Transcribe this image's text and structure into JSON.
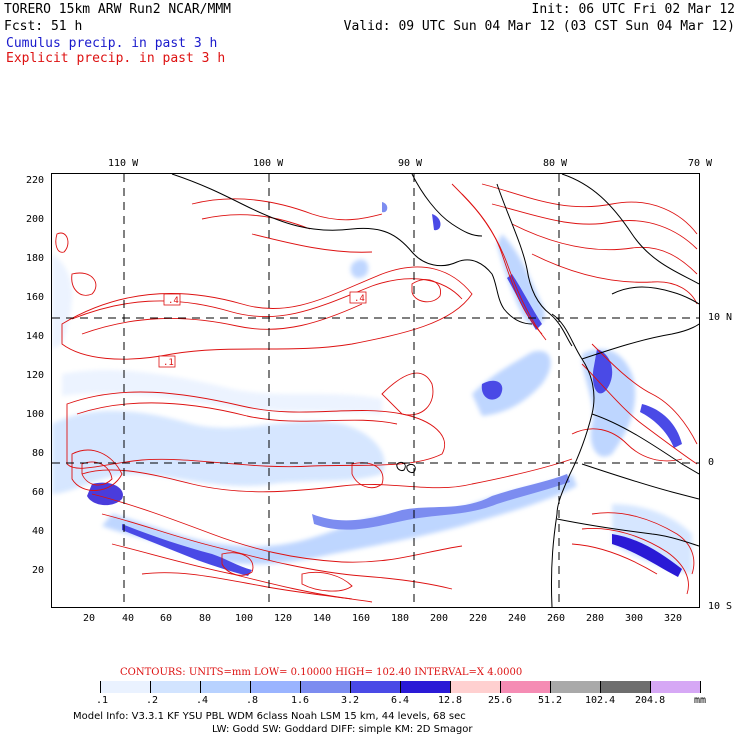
{
  "header": {
    "model_name": "TORERO  15km ARW   Run2    NCAR/MMM",
    "forecast": "Fcst:   51 h",
    "init": "Init: 06 UTC Fri 02 Mar 12",
    "valid": "Valid: 09 UTC Sun 04 Mar 12 (03 CST Sun 04 Mar 12)",
    "field_cumulus": "Cumulus precip. in past 3 h",
    "field_explicit": "Explicit precip. in past 3 h"
  },
  "map": {
    "lon_labels": [
      "110 W",
      "100 W",
      "90 W",
      "80 W",
      "70 W"
    ],
    "lat_labels": [
      "10 N",
      "0",
      "10 S"
    ],
    "y_grid_labels": [
      "220",
      "200",
      "180",
      "160",
      "140",
      "120",
      "100",
      "80",
      "60",
      "40",
      "20"
    ],
    "x_grid_labels": [
      "20",
      "40",
      "60",
      "80",
      "100",
      "120",
      "140",
      "160",
      "180",
      "200",
      "220",
      "240",
      "260",
      "280",
      "300",
      "320"
    ],
    "contour_labels": [
      ".4",
      ".4",
      ".1"
    ]
  },
  "contours": {
    "label": "CONTOURS:  UNITS=mm  LOW= 0.10000      HIGH=  102.40     INTERVAL=X  4.0000"
  },
  "colorbar": {
    "labels": [
      ".1",
      ".2",
      ".4",
      ".8",
      "1.6",
      "3.2",
      "6.4",
      "12.8",
      "25.6",
      "51.2",
      "102.4",
      "204.8"
    ],
    "unit": "mm",
    "colors": [
      "#ffffff",
      "#eaf2ff",
      "#d2e4ff",
      "#b8d2ff",
      "#9ab4ff",
      "#7c8cf0",
      "#4a4ae6",
      "#2a1ad6",
      "#ffd0d0",
      "#f58cb4",
      "#a9a9a9",
      "#6e6e6e",
      "#d6a8f5"
    ]
  },
  "footer": {
    "line1": "Model Info: V3.3.1    KF     YSU PBL   WDM 6class  Noah LSM  15 km,    44 levels,    68 sec",
    "line2": "LW: Godd SW: Goddard DIFF: simple KM: 2D Smagor"
  }
}
